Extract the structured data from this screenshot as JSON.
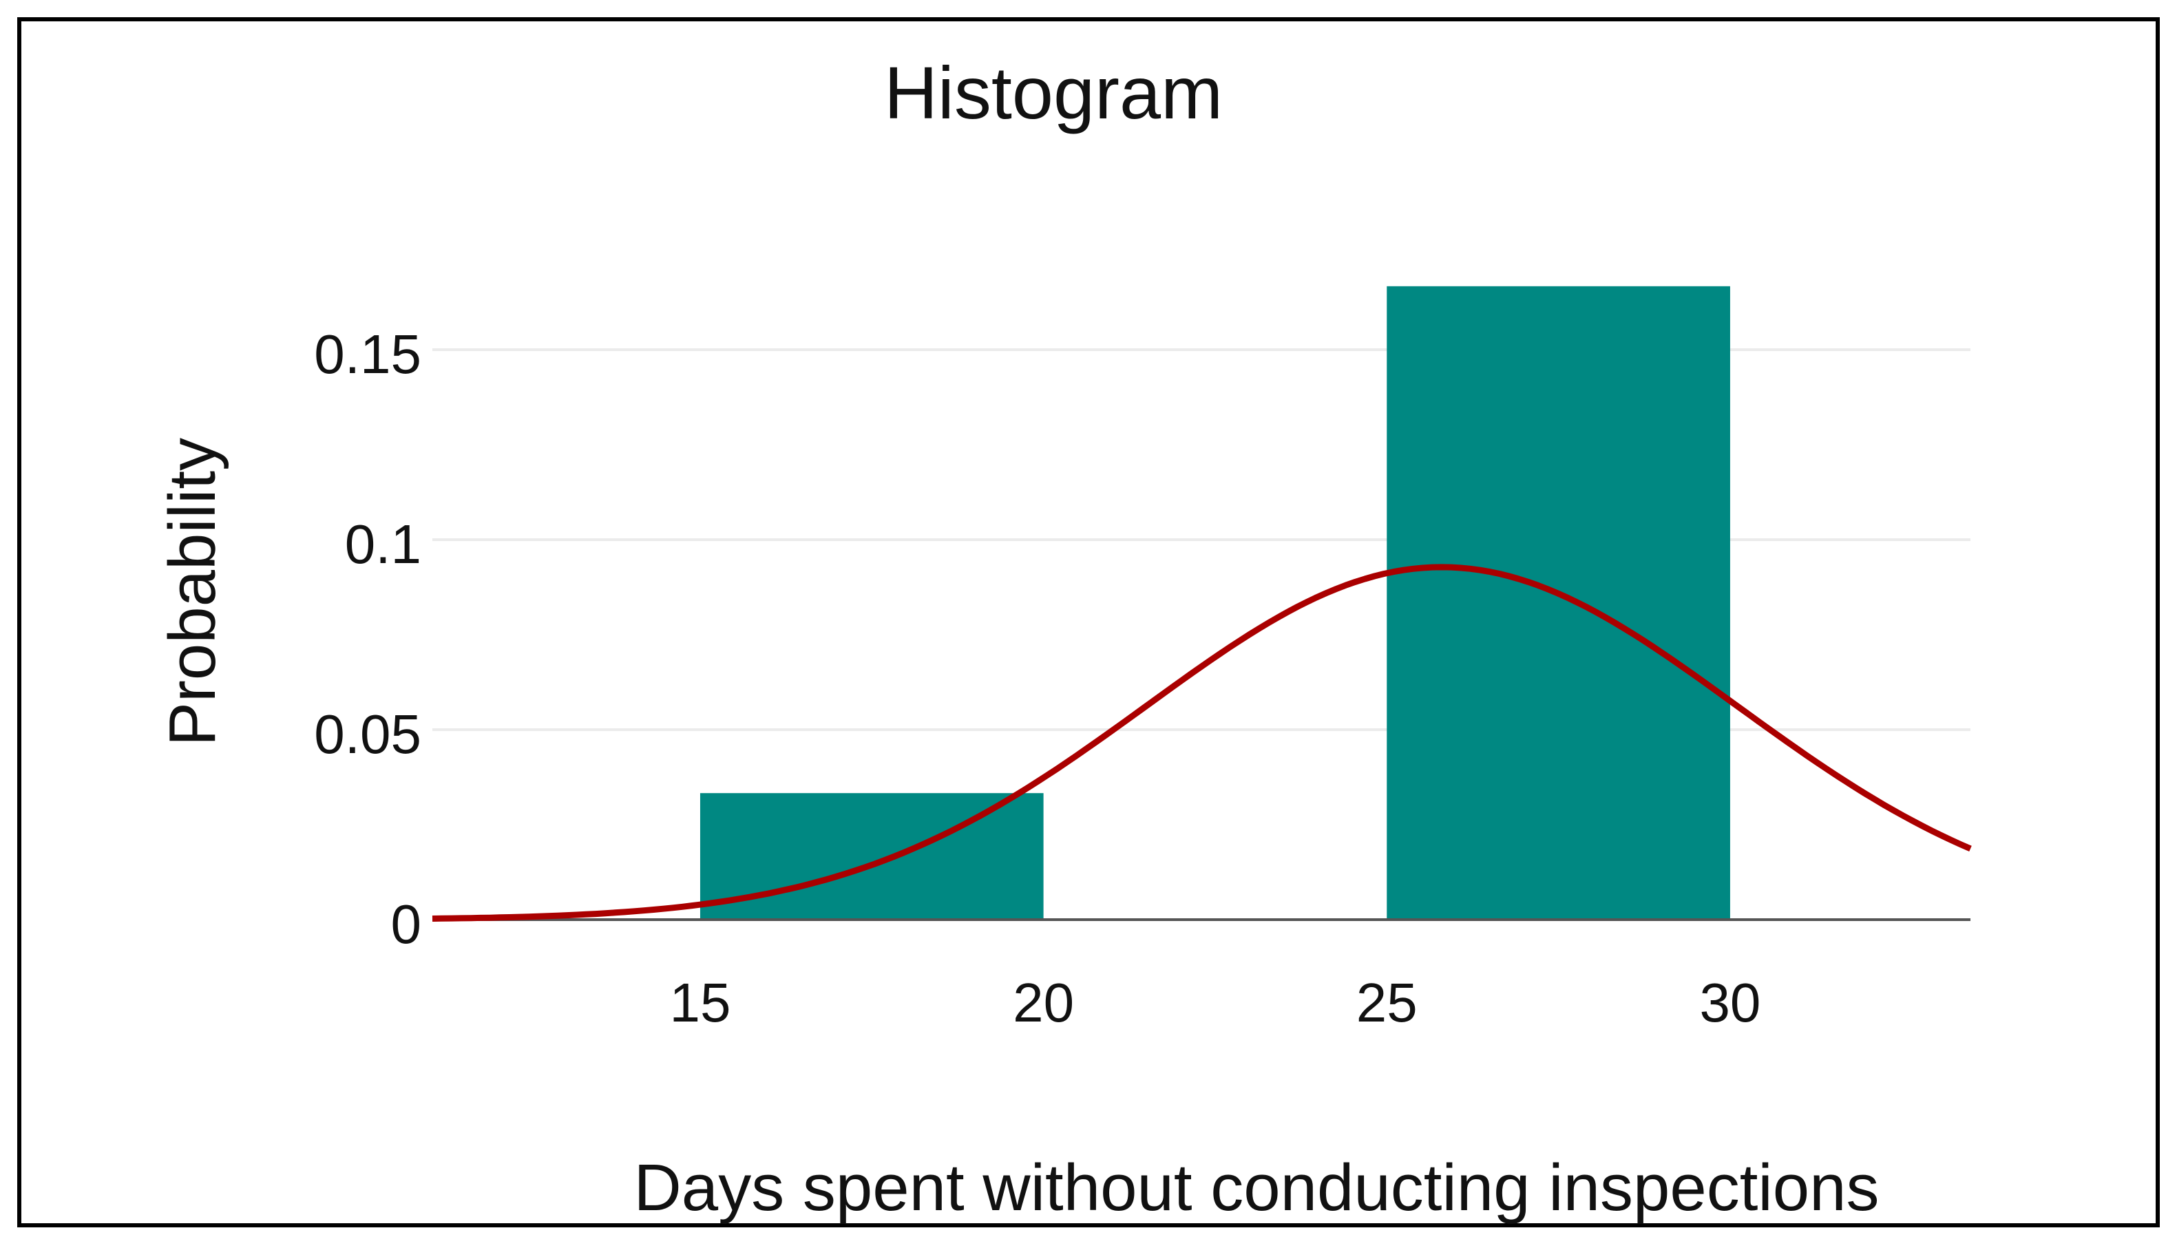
{
  "chart_data": {
    "type": "bar",
    "title": "Histogram",
    "xlabel": "Days spent without conducting inspections",
    "ylabel": "Probability",
    "bins": [
      {
        "x0": 15,
        "x1": 20,
        "value": 0.0333
      },
      {
        "x0": 20,
        "x1": 25,
        "value": 0
      },
      {
        "x0": 25,
        "x1": 30,
        "value": 0.1667
      }
    ],
    "x_ticks": [
      "15",
      "20",
      "25",
      "30"
    ],
    "y_ticks": [
      "0",
      "0.05",
      "0.1",
      "0.15"
    ],
    "xlim": [
      11.1,
      33.5
    ],
    "ylim": [
      0,
      0.175
    ],
    "grid": true,
    "bar_color": "#008882",
    "curve": {
      "type": "normal-density",
      "mean": 25.8,
      "sd": 4.3,
      "color": "#aa0000"
    }
  }
}
